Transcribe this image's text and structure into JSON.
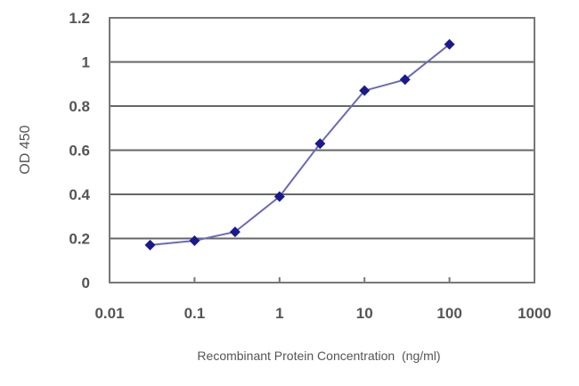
{
  "chart_data": {
    "type": "line",
    "title": "",
    "xlabel": "Recombinant Protein Concentration  (ng/ml)",
    "ylabel": "OD 450",
    "x_scale": "log",
    "xlim": [
      0.01,
      1000
    ],
    "ylim": [
      0,
      1.2
    ],
    "x_ticks": [
      "0.01",
      "0.1",
      "1",
      "10",
      "100",
      "1000"
    ],
    "y_ticks": [
      "0",
      "0.2",
      "0.4",
      "0.6",
      "0.8",
      "1",
      "1.2"
    ],
    "grid": "horizontal",
    "legend": null,
    "series": [
      {
        "name": "OD 450",
        "color": "#1a1a8c",
        "marker": "diamond",
        "x": [
          0.03,
          0.1,
          0.3,
          1,
          3,
          10,
          30,
          100
        ],
        "values": [
          0.17,
          0.19,
          0.23,
          0.39,
          0.63,
          0.87,
          0.92,
          1.08
        ]
      }
    ]
  }
}
